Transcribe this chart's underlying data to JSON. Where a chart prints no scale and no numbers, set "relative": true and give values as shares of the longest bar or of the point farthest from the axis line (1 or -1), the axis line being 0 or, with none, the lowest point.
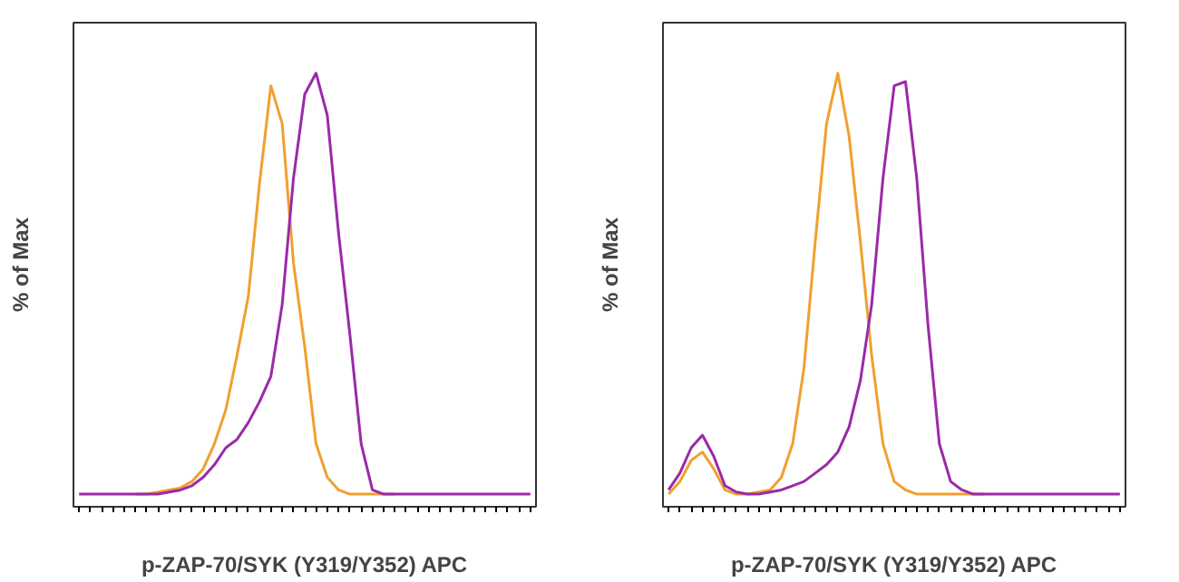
{
  "chart_data": [
    {
      "type": "line",
      "relative": true,
      "xlabel": "p-ZAP-70/SYK (Y319/Y352) APC",
      "ylabel": "% of Max",
      "grid": false,
      "categories": [
        null,
        null,
        null,
        null,
        null,
        null,
        null,
        null,
        null,
        null,
        null,
        null,
        null,
        null,
        null,
        null,
        null,
        null,
        null,
        null,
        null,
        null,
        null,
        null,
        null,
        null,
        null,
        null,
        null,
        null,
        null,
        null,
        null,
        null,
        null,
        null,
        null,
        null,
        null,
        null,
        null
      ],
      "series": [
        {
          "color": "#f0a030",
          "values": [
            null,
            null,
            null,
            null,
            null,
            0,
            0,
            0.005,
            0.01,
            0.015,
            0.03,
            0.06,
            0.12,
            0.2,
            0.33,
            0.47,
            0.74,
            0.97,
            0.88,
            0.55,
            0.35,
            0.12,
            0.04,
            0.01,
            0,
            0,
            0,
            0,
            0,
            null,
            null,
            null,
            null,
            null,
            null,
            null,
            null,
            null,
            null,
            null,
            null
          ]
        },
        {
          "color": "#9a2aa8",
          "values": [
            0,
            0,
            0,
            0,
            0,
            0,
            0,
            0,
            0.005,
            0.01,
            0.02,
            0.04,
            0.07,
            0.11,
            0.13,
            0.17,
            0.22,
            0.28,
            0.45,
            0.75,
            0.95,
            1.0,
            0.9,
            0.62,
            0.38,
            0.12,
            0.01,
            0,
            0,
            0,
            0,
            0,
            0,
            0,
            0,
            0,
            0,
            0,
            0,
            0,
            0
          ]
        }
      ]
    },
    {
      "type": "line",
      "relative": true,
      "xlabel": "p-ZAP-70/SYK (Y319/Y352) APC",
      "ylabel": "% of Max",
      "grid": false,
      "categories": [
        null,
        null,
        null,
        null,
        null,
        null,
        null,
        null,
        null,
        null,
        null,
        null,
        null,
        null,
        null,
        null,
        null,
        null,
        null,
        null,
        null,
        null,
        null,
        null,
        null,
        null,
        null,
        null,
        null,
        null,
        null,
        null,
        null,
        null,
        null,
        null,
        null,
        null,
        null,
        null,
        null
      ],
      "series": [
        {
          "color": "#f0a030",
          "values": [
            0,
            0.03,
            0.08,
            0.1,
            0.06,
            0.01,
            0,
            0,
            0.005,
            0.01,
            0.04,
            0.12,
            0.3,
            0.6,
            0.88,
            1.0,
            0.85,
            0.6,
            0.33,
            0.12,
            0.03,
            0.01,
            0,
            0,
            0,
            0,
            0,
            0,
            0,
            null,
            null,
            null,
            null,
            null,
            null,
            null,
            null,
            null,
            null,
            null,
            null
          ]
        },
        {
          "color": "#9a2aa8",
          "values": [
            0.01,
            0.05,
            0.11,
            0.14,
            0.09,
            0.02,
            0.005,
            0,
            0,
            0.005,
            0.01,
            0.02,
            0.03,
            0.05,
            0.07,
            0.1,
            0.16,
            0.27,
            0.45,
            0.75,
            0.97,
            0.98,
            0.75,
            0.4,
            0.12,
            0.03,
            0.01,
            0,
            0,
            0,
            0,
            0,
            0,
            0,
            0,
            0,
            0,
            0,
            0,
            0,
            0
          ]
        }
      ]
    }
  ]
}
